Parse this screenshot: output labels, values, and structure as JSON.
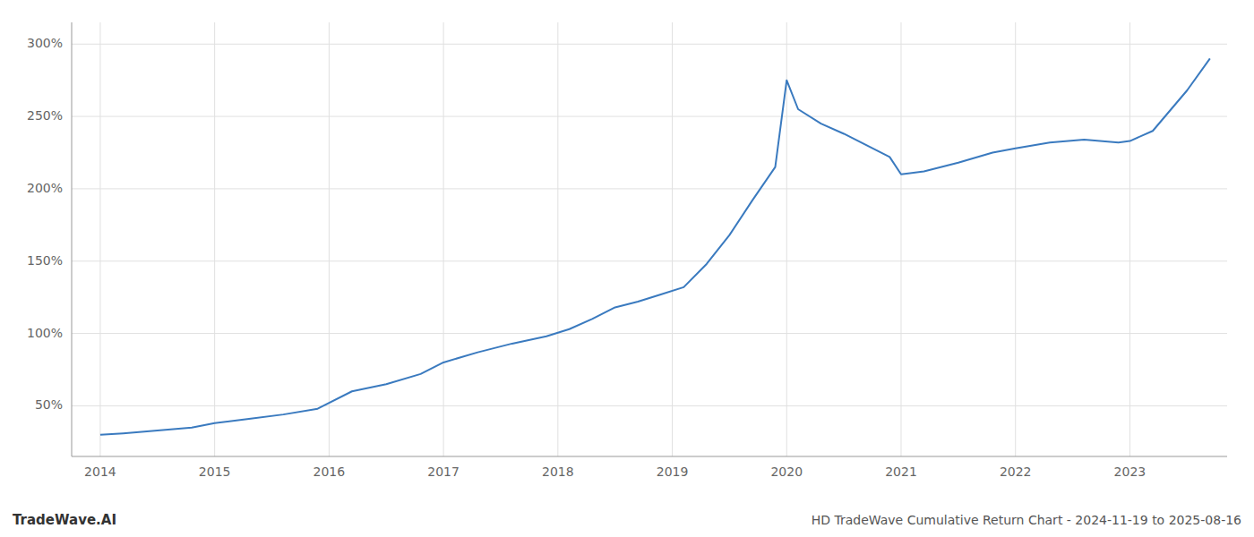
{
  "chart_data": {
    "type": "line",
    "title": "HD TradeWave Cumulative Return Chart - 2024-11-19 to 2025-08-16",
    "annotations": [
      "TradeWave.AI"
    ],
    "x": [
      2014.0,
      2014.2,
      2014.5,
      2014.8,
      2015.0,
      2015.3,
      2015.6,
      2015.9,
      2016.2,
      2016.5,
      2016.8,
      2017.0,
      2017.3,
      2017.6,
      2017.9,
      2018.1,
      2018.3,
      2018.5,
      2018.7,
      2018.9,
      2019.1,
      2019.3,
      2019.5,
      2019.7,
      2019.9,
      2020.0,
      2020.1,
      2020.3,
      2020.5,
      2020.7,
      2020.9,
      2021.0,
      2021.2,
      2021.5,
      2021.8,
      2022.0,
      2022.3,
      2022.6,
      2022.9,
      2023.0,
      2023.2,
      2023.5,
      2023.7
    ],
    "values": [
      30,
      31,
      33,
      35,
      38,
      41,
      44,
      48,
      60,
      65,
      72,
      80,
      87,
      93,
      98,
      103,
      110,
      118,
      122,
      127,
      132,
      148,
      168,
      192,
      215,
      275,
      255,
      245,
      238,
      230,
      222,
      210,
      212,
      218,
      225,
      228,
      232,
      234,
      232,
      233,
      240,
      268,
      290
    ],
    "color": "#3a7abf",
    "xlim": [
      2013.75,
      2023.85
    ],
    "ylim": [
      15,
      315
    ],
    "xticks": [
      2014,
      2015,
      2016,
      2017,
      2018,
      2019,
      2020,
      2021,
      2022,
      2023
    ],
    "yticks": [
      {
        "value": 50,
        "label": "50%"
      },
      {
        "value": 100,
        "label": "100%"
      },
      {
        "value": 150,
        "label": "150%"
      },
      {
        "value": 200,
        "label": "200%"
      },
      {
        "value": 250,
        "label": "250%"
      },
      {
        "value": 300,
        "label": "300%"
      }
    ],
    "grid": true
  }
}
